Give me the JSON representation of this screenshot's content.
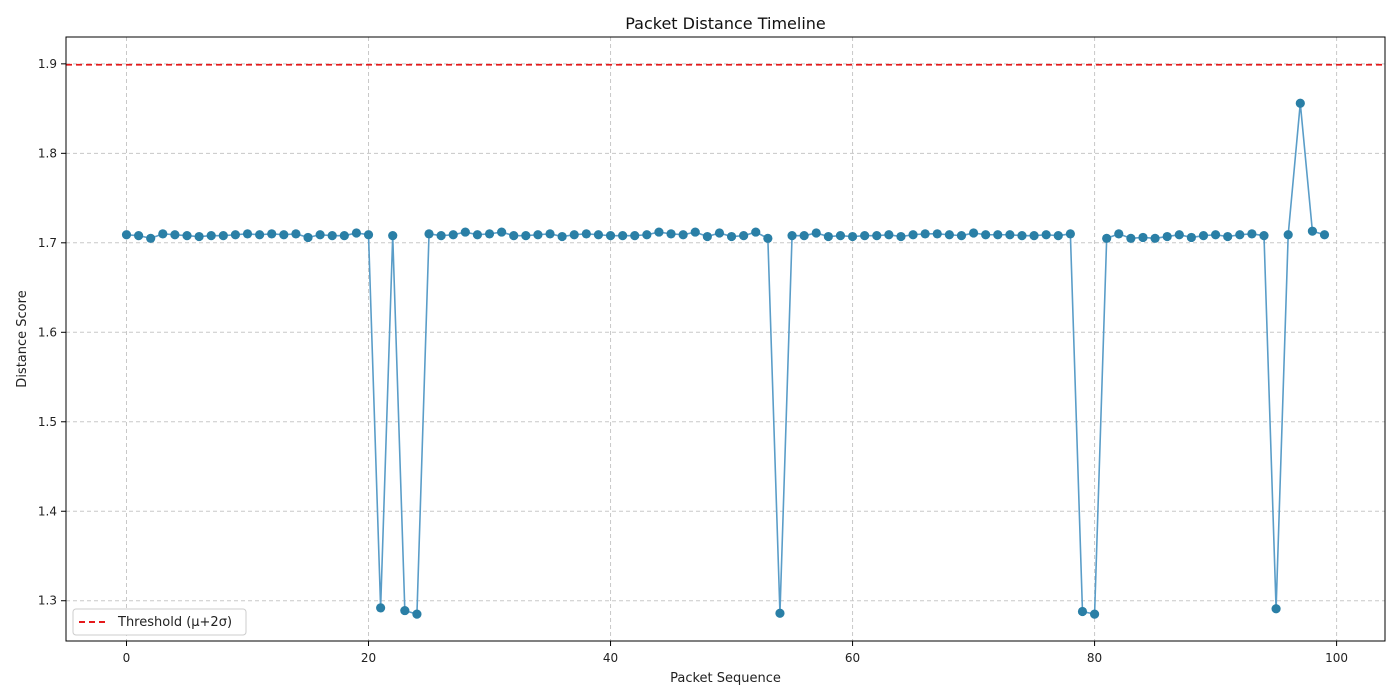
{
  "chart_data": {
    "type": "line",
    "title": "Packet Distance Timeline",
    "xlabel": "Packet Sequence",
    "ylabel": "Distance Score",
    "xlim": [
      -5,
      104
    ],
    "ylim": [
      1.255,
      1.93
    ],
    "xticks": [
      0,
      20,
      40,
      60,
      80,
      100
    ],
    "yticks": [
      1.3,
      1.4,
      1.5,
      1.6,
      1.7,
      1.8,
      1.9
    ],
    "grid": true,
    "legend_position": "lower-left",
    "threshold": {
      "label": "Threshold (μ+2σ)",
      "value": 1.899,
      "color": "#e41a1c"
    },
    "series": [
      {
        "color_line": "#5a9dc8",
        "color_marker": "#2a7fa6",
        "x": [
          0,
          1,
          2,
          3,
          4,
          5,
          6,
          7,
          8,
          9,
          10,
          11,
          12,
          13,
          14,
          15,
          16,
          17,
          18,
          19,
          20,
          21,
          22,
          23,
          24,
          25,
          26,
          27,
          28,
          29,
          30,
          31,
          32,
          33,
          34,
          35,
          36,
          37,
          38,
          39,
          40,
          41,
          42,
          43,
          44,
          45,
          46,
          47,
          48,
          49,
          50,
          51,
          52,
          53,
          54,
          55,
          56,
          57,
          58,
          59,
          60,
          61,
          62,
          63,
          64,
          65,
          66,
          67,
          68,
          69,
          70,
          71,
          72,
          73,
          74,
          75,
          76,
          77,
          78,
          79,
          80,
          81,
          82,
          83,
          84,
          85,
          86,
          87,
          88,
          89,
          90,
          91,
          92,
          93,
          94,
          95,
          96,
          97,
          98,
          99
        ],
        "values": [
          1.709,
          1.708,
          1.705,
          1.71,
          1.709,
          1.708,
          1.707,
          1.708,
          1.708,
          1.709,
          1.71,
          1.709,
          1.71,
          1.709,
          1.71,
          1.706,
          1.709,
          1.708,
          1.708,
          1.711,
          1.709,
          1.292,
          1.708,
          1.289,
          1.285,
          1.71,
          1.708,
          1.709,
          1.712,
          1.709,
          1.71,
          1.712,
          1.708,
          1.708,
          1.709,
          1.71,
          1.707,
          1.709,
          1.71,
          1.709,
          1.708,
          1.708,
          1.708,
          1.709,
          1.712,
          1.71,
          1.709,
          1.712,
          1.707,
          1.711,
          1.707,
          1.708,
          1.712,
          1.705,
          1.286,
          1.708,
          1.708,
          1.711,
          1.707,
          1.708,
          1.707,
          1.708,
          1.708,
          1.709,
          1.707,
          1.709,
          1.71,
          1.71,
          1.709,
          1.708,
          1.711,
          1.709,
          1.709,
          1.709,
          1.708,
          1.708,
          1.709,
          1.708,
          1.71,
          1.288,
          1.285,
          1.705,
          1.71,
          1.705,
          1.706,
          1.705,
          1.707,
          1.709,
          1.706,
          1.708,
          1.709,
          1.707,
          1.709,
          1.71,
          1.708,
          1.291,
          1.709,
          1.856,
          1.713,
          1.709
        ]
      }
    ]
  }
}
